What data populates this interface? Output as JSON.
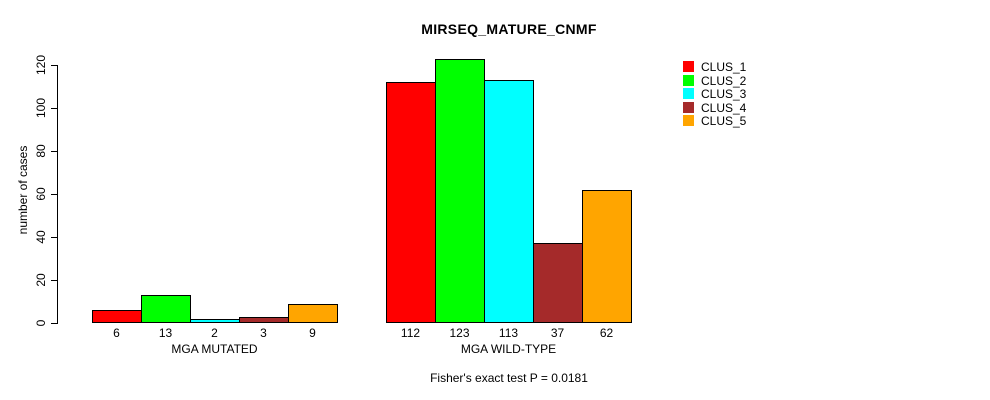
{
  "chart_data": {
    "type": "bar",
    "title": "MIRSEQ_MATURE_CNMF",
    "ylabel": "number of cases",
    "xlabel": "",
    "annotation": "Fisher's exact test P = 0.0181",
    "yticks": [
      0,
      20,
      40,
      60,
      80,
      100,
      120
    ],
    "ylim": [
      0,
      123
    ],
    "grid": false,
    "legend_position": "top-right",
    "bar_border_color": "#000000",
    "series": [
      {
        "name": "CLUS_1",
        "color": "#FF0000"
      },
      {
        "name": "CLUS_2",
        "color": "#00FF00"
      },
      {
        "name": "CLUS_3",
        "color": "#00FFFF"
      },
      {
        "name": "CLUS_4",
        "color": "#A52A2A"
      },
      {
        "name": "CLUS_5",
        "color": "#FFA500"
      }
    ],
    "groups": [
      {
        "label": "MGA MUTATED",
        "values": [
          6,
          13,
          2,
          3,
          9
        ]
      },
      {
        "label": "MGA WILD-TYPE",
        "values": [
          112,
          123,
          113,
          37,
          62
        ]
      }
    ]
  }
}
